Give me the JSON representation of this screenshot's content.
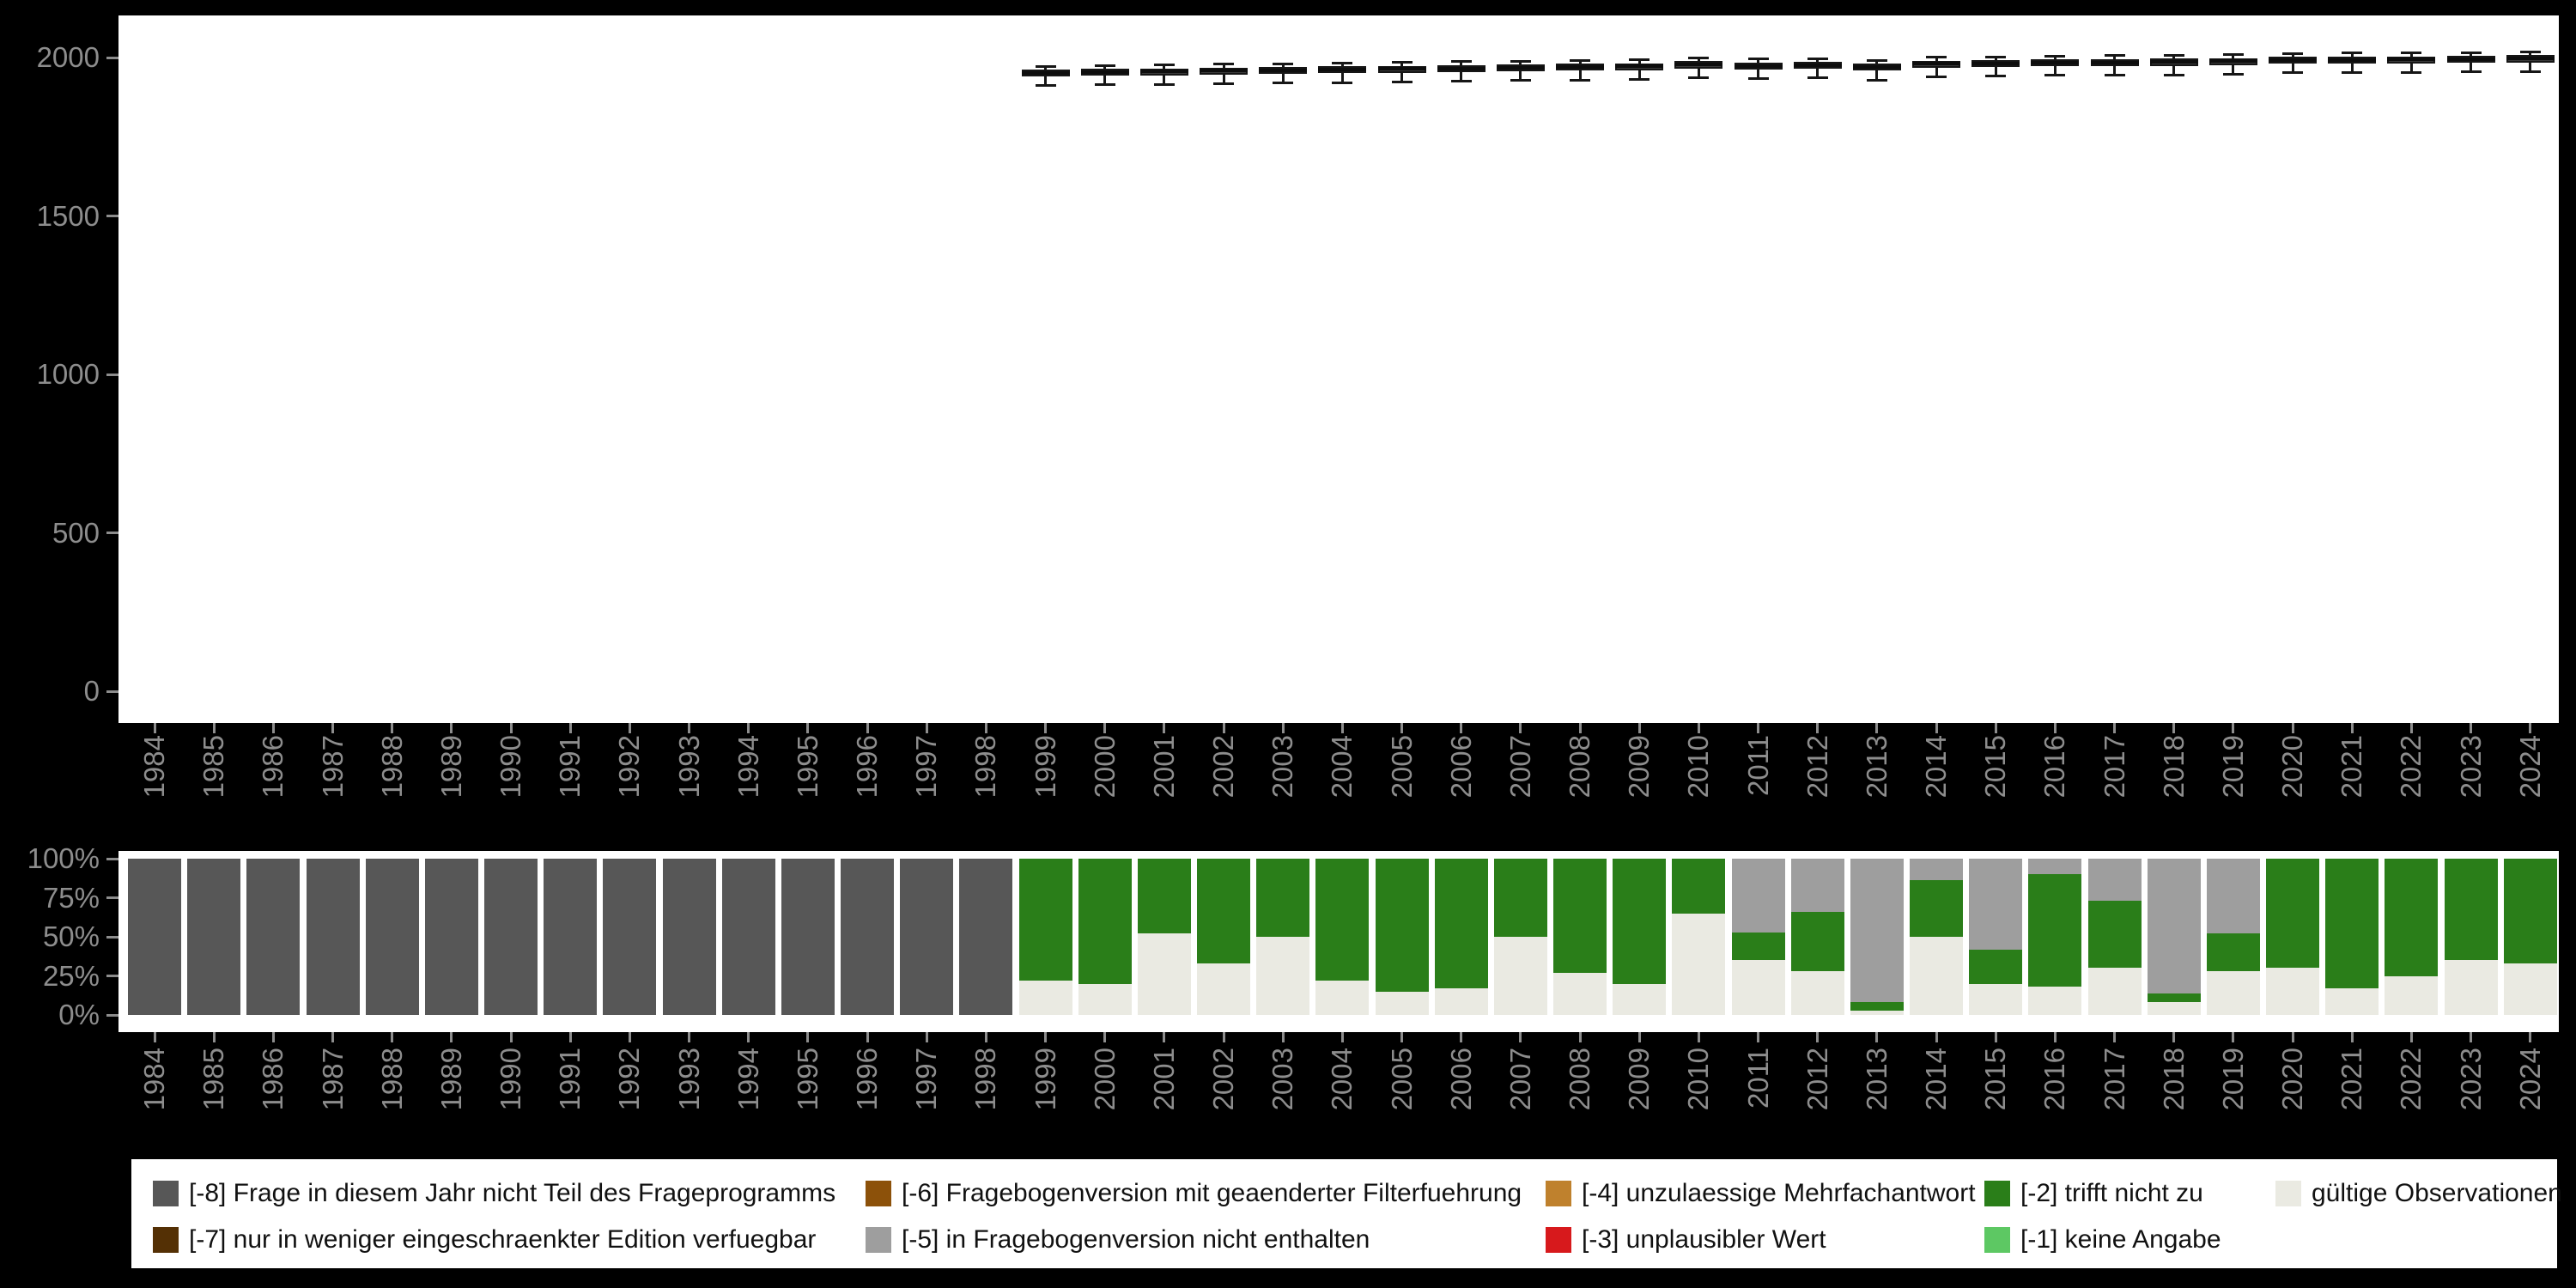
{
  "background_color": "#000000",
  "panel_color": "#ffffff",
  "axis_text_color": "#8d8d8d",
  "years": [
    "1984",
    "1985",
    "1986",
    "1987",
    "1988",
    "1989",
    "1990",
    "1991",
    "1992",
    "1993",
    "1994",
    "1995",
    "1996",
    "1997",
    "1998",
    "1999",
    "2000",
    "2001",
    "2002",
    "2003",
    "2004",
    "2005",
    "2006",
    "2007",
    "2008",
    "2009",
    "2010",
    "2011",
    "2012",
    "2013",
    "2014",
    "2015",
    "2016",
    "2017",
    "2018",
    "2019",
    "2020",
    "2021",
    "2022",
    "2023",
    "2024"
  ],
  "chart_data": [
    {
      "type": "boxplot",
      "title": "",
      "xlabel": "",
      "ylabel": "",
      "orientation": "vertical",
      "ylim": [
        0,
        2130
      ],
      "yticks": [
        0,
        500,
        1000,
        1500,
        2000
      ],
      "grid": "off",
      "box_fill_color": "#3a3a3a",
      "box_line_color": "#161616",
      "note": "No boxes for 1984-1998; flat boxes near value 2000 for 1999-2024",
      "box_schema": [
        "year",
        "lower",
        "q1",
        "median",
        "q3",
        "upper"
      ],
      "boxes": [
        [
          1999,
          1910,
          1940,
          1952,
          1962,
          1974
        ],
        [
          2000,
          1912,
          1942,
          1954,
          1964,
          1976
        ],
        [
          2001,
          1914,
          1944,
          1956,
          1966,
          1978
        ],
        [
          2002,
          1916,
          1946,
          1958,
          1968,
          1980
        ],
        [
          2003,
          1918,
          1948,
          1960,
          1970,
          1982
        ],
        [
          2004,
          1920,
          1950,
          1962,
          1972,
          1984
        ],
        [
          2005,
          1922,
          1952,
          1964,
          1974,
          1986
        ],
        [
          2006,
          1924,
          1954,
          1966,
          1976,
          1988
        ],
        [
          2007,
          1926,
          1956,
          1968,
          1978,
          1990
        ],
        [
          2008,
          1928,
          1958,
          1970,
          1980,
          1992
        ],
        [
          2009,
          1930,
          1960,
          1972,
          1982,
          1994
        ],
        [
          2010,
          1936,
          1966,
          1978,
          1988,
          2000
        ],
        [
          2011,
          1932,
          1962,
          1974,
          1984,
          1996
        ],
        [
          2012,
          1934,
          1964,
          1976,
          1986,
          1998
        ],
        [
          2013,
          1928,
          1958,
          1970,
          1980,
          1992
        ],
        [
          2014,
          1938,
          1968,
          1980,
          1990,
          2002
        ],
        [
          2015,
          1940,
          1970,
          1982,
          1992,
          2004
        ],
        [
          2016,
          1942,
          1972,
          1984,
          1994,
          2006
        ],
        [
          2017,
          1943,
          1973,
          1985,
          1995,
          2007
        ],
        [
          2018,
          1944,
          1974,
          1986,
          1996,
          2008
        ],
        [
          2019,
          1946,
          1976,
          1988,
          1998,
          2010
        ],
        [
          2020,
          1950,
          1980,
          1992,
          2002,
          2014
        ],
        [
          2021,
          1951,
          1981,
          1993,
          2003,
          2015
        ],
        [
          2022,
          1952,
          1982,
          1994,
          2004,
          2016
        ],
        [
          2023,
          1953,
          1983,
          1995,
          2005,
          2017
        ],
        [
          2024,
          1955,
          1985,
          1997,
          2007,
          2019
        ]
      ]
    },
    {
      "type": "stacked_bar_percent",
      "title": "",
      "xlabel": "",
      "ylabel": "",
      "ytick_labels": [
        "0%",
        "25%",
        "50%",
        "75%",
        "100%"
      ],
      "ytick_values": [
        0,
        25,
        50,
        75,
        100
      ],
      "grid": "off",
      "stack_order_bottom_to_top": [
        "gültige Observationen",
        "[-2] trifft nicht zu",
        "[-5] in Fragebogenversion nicht enthalten",
        "[-8] Frage in diesem Jahr nicht Teil des Frageprogramms"
      ],
      "series": [
        {
          "name": "gültige Observationen",
          "color": "#eaeae2",
          "values": [
            0,
            0,
            0,
            0,
            0,
            0,
            0,
            0,
            0,
            0,
            0,
            0,
            0,
            0,
            0,
            22,
            20,
            52,
            33,
            50,
            22,
            15,
            17,
            50,
            27,
            20,
            65,
            35,
            28,
            3,
            50,
            20,
            18,
            30,
            8,
            28,
            30,
            17,
            25,
            35,
            33
          ]
        },
        {
          "name": "[-2] trifft nicht zu",
          "color": "#2a7e19",
          "values": [
            0,
            0,
            0,
            0,
            0,
            0,
            0,
            0,
            0,
            0,
            0,
            0,
            0,
            0,
            0,
            78,
            80,
            48,
            67,
            50,
            78,
            85,
            83,
            50,
            73,
            80,
            35,
            18,
            38,
            5,
            36,
            22,
            72,
            43,
            6,
            24,
            70,
            83,
            75,
            65,
            67
          ]
        },
        {
          "name": "[-5] in Fragebogenversion nicht enthalten",
          "color": "#9e9e9e",
          "values": [
            0,
            0,
            0,
            0,
            0,
            0,
            0,
            0,
            0,
            0,
            0,
            0,
            0,
            0,
            0,
            0,
            0,
            0,
            0,
            0,
            0,
            0,
            0,
            0,
            0,
            0,
            0,
            47,
            34,
            92,
            14,
            58,
            10,
            27,
            86,
            48,
            0,
            0,
            0,
            0,
            0
          ]
        },
        {
          "name": "[-8] Frage in diesem Jahr nicht Teil des Frageprogramms",
          "color": "#575757",
          "values": [
            100,
            100,
            100,
            100,
            100,
            100,
            100,
            100,
            100,
            100,
            100,
            100,
            100,
            100,
            100,
            0,
            0,
            0,
            0,
            0,
            0,
            0,
            0,
            0,
            0,
            0,
            0,
            0,
            0,
            0,
            0,
            0,
            0,
            0,
            0,
            0,
            0,
            0,
            0,
            0,
            0
          ]
        }
      ],
      "legend_only_series": [
        "[-7] nur in weniger eingeschraenkter Edition verfuegbar",
        "[-6] Fragebogenversion mit geaenderter Filterfuehrung",
        "[-4] unzulaessige Mehrfachantwort",
        "[-3] unplausibler Wert",
        "[-1] keine Angabe"
      ]
    }
  ],
  "legend": {
    "items": [
      {
        "label": "[-8] Frage in diesem Jahr nicht Teil des Frageprogramms",
        "color": "#575757",
        "col": 0,
        "row": 0
      },
      {
        "label": "[-7] nur in weniger eingeschraenkter Edition verfuegbar",
        "color": "#543005",
        "col": 0,
        "row": 1
      },
      {
        "label": "[-6] Fragebogenversion mit geaenderter Filterfuehrung",
        "color": "#8c510a",
        "col": 1,
        "row": 0
      },
      {
        "label": "[-5] in Fragebogenversion nicht enthalten",
        "color": "#9e9e9e",
        "col": 1,
        "row": 1
      },
      {
        "label": "[-4] unzulaessige Mehrfachantwort",
        "color": "#bf812d",
        "col": 2,
        "row": 0
      },
      {
        "label": "[-3] unplausibler Wert",
        "color": "#d7191c",
        "col": 2,
        "row": 1
      },
      {
        "label": "[-2] trifft nicht zu",
        "color": "#2a7e19",
        "col": 3,
        "row": 0
      },
      {
        "label": "[-1] keine Angabe",
        "color": "#5dc863",
        "col": 3,
        "row": 1
      },
      {
        "label": "gültige Observationen",
        "color": "#eaeae2",
        "col": 4,
        "row": 0
      }
    ]
  }
}
